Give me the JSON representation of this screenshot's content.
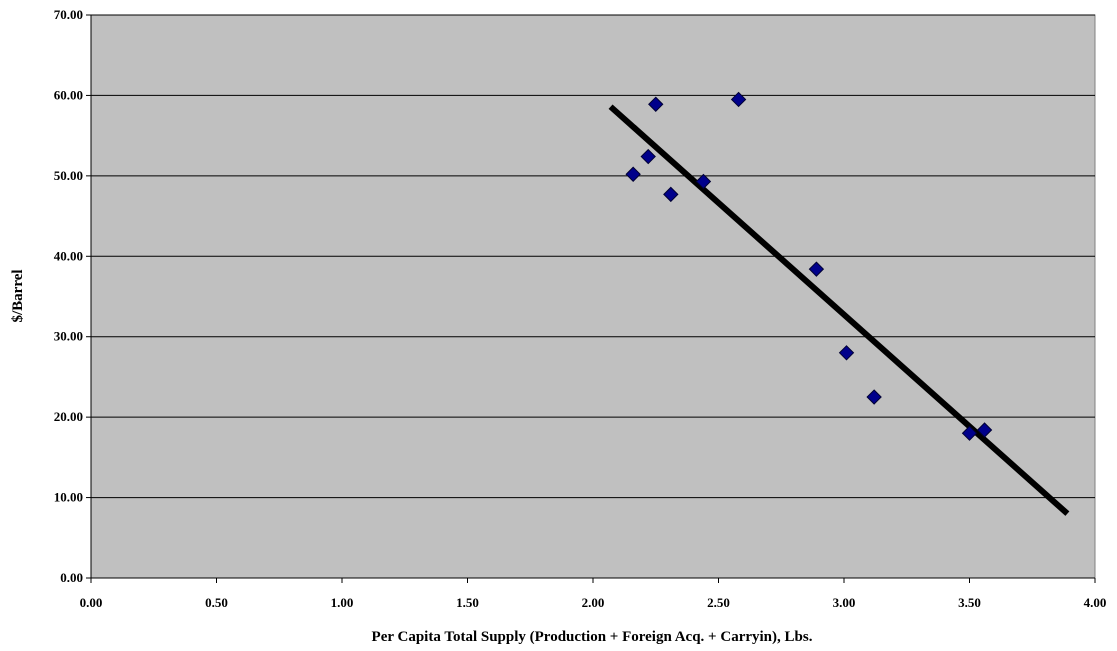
{
  "chart_data": {
    "type": "scatter",
    "title": "",
    "xlabel": "Per Capita Total Supply (Production + Foreign Acq. + Carryin), Lbs.",
    "ylabel": "$/Barrel",
    "xlim": [
      0,
      4
    ],
    "ylim": [
      0,
      70
    ],
    "x_ticks": [
      "0.00",
      "0.50",
      "1.00",
      "1.50",
      "2.00",
      "2.50",
      "3.00",
      "3.50",
      "4.00"
    ],
    "y_ticks": [
      "0.00",
      "10.00",
      "20.00",
      "30.00",
      "40.00",
      "50.00",
      "60.00",
      "70.00"
    ],
    "grid": "horizontal",
    "colors": {
      "plot_bg": "#c0c0c0",
      "marker": "#00008b",
      "trend": "#000000",
      "grid": "#000000"
    },
    "series": [
      {
        "marker": "diamond",
        "points": [
          {
            "x": 2.16,
            "y": 50.2
          },
          {
            "x": 2.22,
            "y": 52.4
          },
          {
            "x": 2.25,
            "y": 58.9
          },
          {
            "x": 2.31,
            "y": 47.7
          },
          {
            "x": 2.44,
            "y": 49.3
          },
          {
            "x": 2.58,
            "y": 59.5
          },
          {
            "x": 2.89,
            "y": 38.4
          },
          {
            "x": 3.01,
            "y": 28.0
          },
          {
            "x": 3.12,
            "y": 22.5
          },
          {
            "x": 3.5,
            "y": 18.0
          },
          {
            "x": 3.56,
            "y": 18.4
          }
        ]
      }
    ],
    "trendline": {
      "from": {
        "x": 2.07,
        "y": 58.6
      },
      "to": {
        "x": 3.89,
        "y": 8.0
      }
    }
  }
}
